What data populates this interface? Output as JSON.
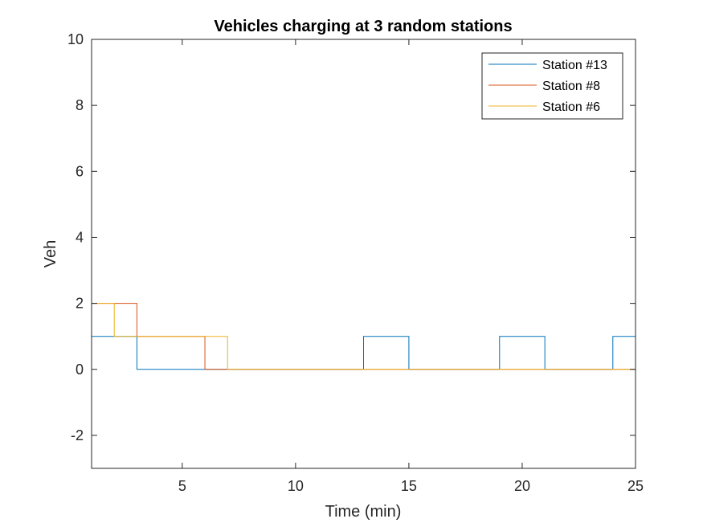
{
  "chart_data": {
    "type": "line",
    "step": "stairs",
    "title": "Vehicles charging at 3 random stations",
    "xlabel": "Time (min)",
    "ylabel": "Veh",
    "xlim": [
      1,
      25
    ],
    "ylim": [
      -3,
      10
    ],
    "xticks": [
      5,
      10,
      15,
      20,
      25
    ],
    "yticks": [
      -2,
      0,
      2,
      4,
      6,
      8,
      10
    ],
    "grid": false,
    "legend_position": "top-right",
    "series": [
      {
        "name": "Station #13",
        "color": "#0072BD",
        "x": [
          1,
          2,
          3,
          4,
          5,
          6,
          7,
          8,
          9,
          10,
          11,
          12,
          13,
          14,
          15,
          16,
          17,
          18,
          19,
          20,
          21,
          22,
          23,
          24,
          25
        ],
        "y": [
          1,
          1,
          0,
          0,
          0,
          0,
          0,
          0,
          0,
          0,
          0,
          0,
          1,
          1,
          0,
          0,
          0,
          0,
          1,
          1,
          0,
          0,
          0,
          1,
          0
        ]
      },
      {
        "name": "Station #8",
        "color": "#D95319",
        "x": [
          1,
          2,
          3,
          4,
          5,
          6,
          7,
          8,
          9,
          10,
          11,
          12,
          13,
          14,
          15,
          16,
          17,
          18,
          19,
          20,
          21,
          22,
          23,
          24,
          25
        ],
        "y": [
          2,
          2,
          1,
          1,
          1,
          0,
          0,
          0,
          0,
          0,
          0,
          0,
          0,
          0,
          0,
          0,
          0,
          0,
          0,
          0,
          0,
          0,
          0,
          0,
          0
        ]
      },
      {
        "name": "Station #6",
        "color": "#EDB120",
        "x": [
          1,
          2,
          3,
          4,
          5,
          6,
          7,
          8,
          9,
          10,
          11,
          12,
          13,
          14,
          15,
          16,
          17,
          18,
          19,
          20,
          21,
          22,
          23,
          24,
          25
        ],
        "y": [
          2,
          1,
          1,
          1,
          1,
          1,
          0,
          0,
          0,
          0,
          0,
          0,
          0,
          0,
          0,
          0,
          0,
          0,
          0,
          0,
          0,
          0,
          0,
          0,
          0
        ]
      }
    ]
  }
}
